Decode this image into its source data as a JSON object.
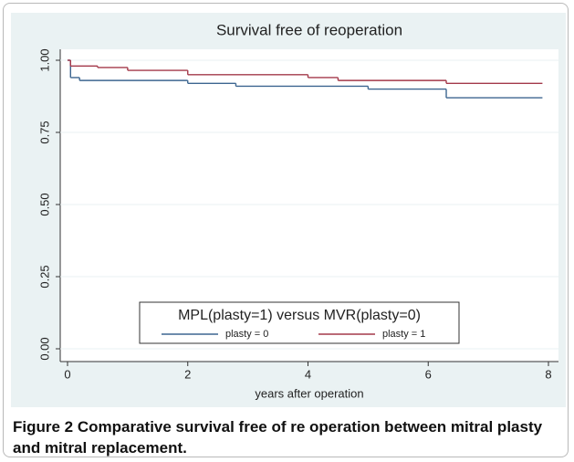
{
  "chart_data": {
    "type": "step",
    "title": "Survival free of reoperation",
    "xlabel": "years after operation",
    "xlim": [
      0,
      8
    ],
    "xticks": [
      0,
      2,
      4,
      6,
      8
    ],
    "ylim": [
      0,
      1
    ],
    "yticks": [
      {
        "value": 0,
        "label": "0.00"
      },
      {
        "value": 0.25,
        "label": "0.25"
      },
      {
        "value": 0.5,
        "label": "0.50"
      },
      {
        "value": 0.75,
        "label": "0.75"
      },
      {
        "value": 1,
        "label": "1.00"
      }
    ],
    "grid": true,
    "legend_title": "MPL(plasty=1) versus  MVR(plasty=0)",
    "legend_position": "bottom",
    "series": [
      {
        "name": "plasty = 0",
        "color": "#3d6690",
        "x": [
          0,
          0.05,
          0.2,
          2,
          2.8,
          5,
          6.3,
          7.9
        ],
        "values": [
          1,
          0.94,
          0.93,
          0.92,
          0.91,
          0.9,
          0.87,
          0.87
        ]
      },
      {
        "name": "plasty = 1",
        "color": "#a3394a",
        "x": [
          0,
          0.05,
          0.5,
          1,
          2,
          4,
          4.5,
          6.3,
          7.9
        ],
        "values": [
          1,
          0.98,
          0.975,
          0.965,
          0.95,
          0.94,
          0.93,
          0.92,
          0.92
        ]
      }
    ]
  },
  "caption": "Figure 2 Comparative survival free of re operation between mitral plasty and mitral replacement."
}
